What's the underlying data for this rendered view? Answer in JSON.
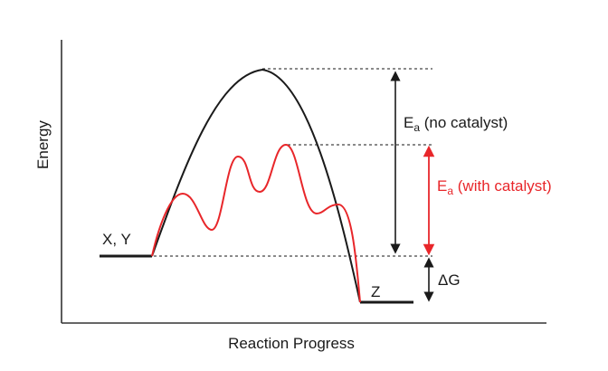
{
  "axes": {
    "x_label": "Reaction Progress",
    "y_label": "Energy"
  },
  "labels": {
    "reactants": "X, Y",
    "product": "Z",
    "ea_no_catalyst_main": "E",
    "ea_no_catalyst_sub": "a",
    "ea_no_catalyst_rest": " (no catalyst)",
    "ea_with_catalyst_main": "E",
    "ea_with_catalyst_sub": "a",
    "ea_with_catalyst_rest": " (with catalyst)",
    "delta_g": "ΔG"
  },
  "colors": {
    "uncatalyzed": "#1a1a1a",
    "catalyzed": "#e8262a",
    "axes": "#333333",
    "dotted": "#444444"
  }
}
